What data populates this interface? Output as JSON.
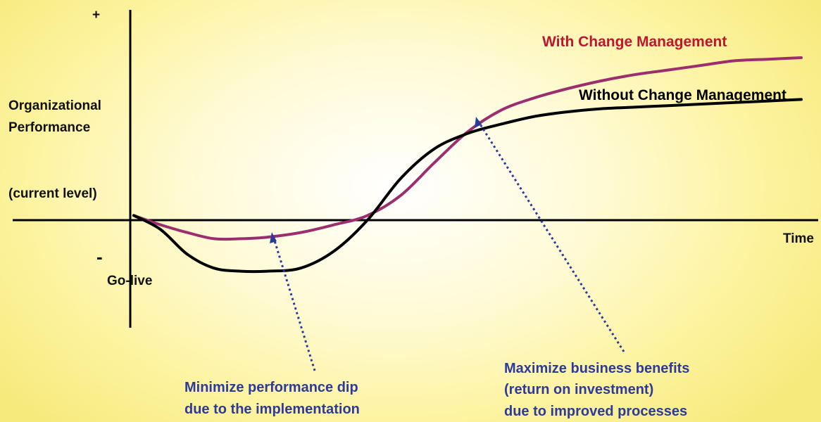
{
  "chart_data": {
    "type": "line",
    "title": "",
    "ylabel": [
      "Organizational",
      "Performance"
    ],
    "baseline_label": "(current level)",
    "y_plus": "+",
    "y_minus": "-",
    "xlabel": "Time",
    "origin_label": "Go-live",
    "xlim": [
      0,
      100
    ],
    "ylim": [
      -100,
      100
    ],
    "grid": false,
    "series": [
      {
        "name": "With Change Management",
        "color": "#9a2e6e",
        "label_color": "#c0152f",
        "x": [
          0,
          4,
          8,
          12,
          16,
          20,
          25,
          30,
          35,
          40,
          45,
          50,
          55,
          60,
          65,
          70,
          75,
          80,
          85,
          90,
          95,
          100
        ],
        "y": [
          3,
          -3,
          -8,
          -12,
          -12,
          -11,
          -8,
          -3,
          3,
          16,
          37,
          57,
          71,
          79,
          85,
          90,
          94,
          97,
          100,
          103,
          104,
          105
        ]
      },
      {
        "name": "Without Change Management",
        "color": "#000000",
        "label_color": "#000000",
        "x": [
          0,
          4,
          8,
          12,
          16,
          20,
          25,
          30,
          35,
          40,
          45,
          50,
          55,
          60,
          65,
          70,
          75,
          80,
          85,
          90,
          95,
          100
        ],
        "y": [
          3,
          -6,
          -22,
          -31,
          -33,
          -33,
          -31,
          -20,
          0,
          27,
          46,
          56,
          62,
          67,
          70,
          72,
          73,
          74,
          75,
          76,
          77,
          78
        ]
      }
    ],
    "annotations": [
      {
        "text": [
          "Minimize performance dip",
          "due to the implementation"
        ],
        "color": "#2e3a9a"
      },
      {
        "text": [
          "Maximize business benefits",
          "(return on investment)",
          "due to improved processes"
        ],
        "color": "#2e3a9a"
      }
    ]
  }
}
